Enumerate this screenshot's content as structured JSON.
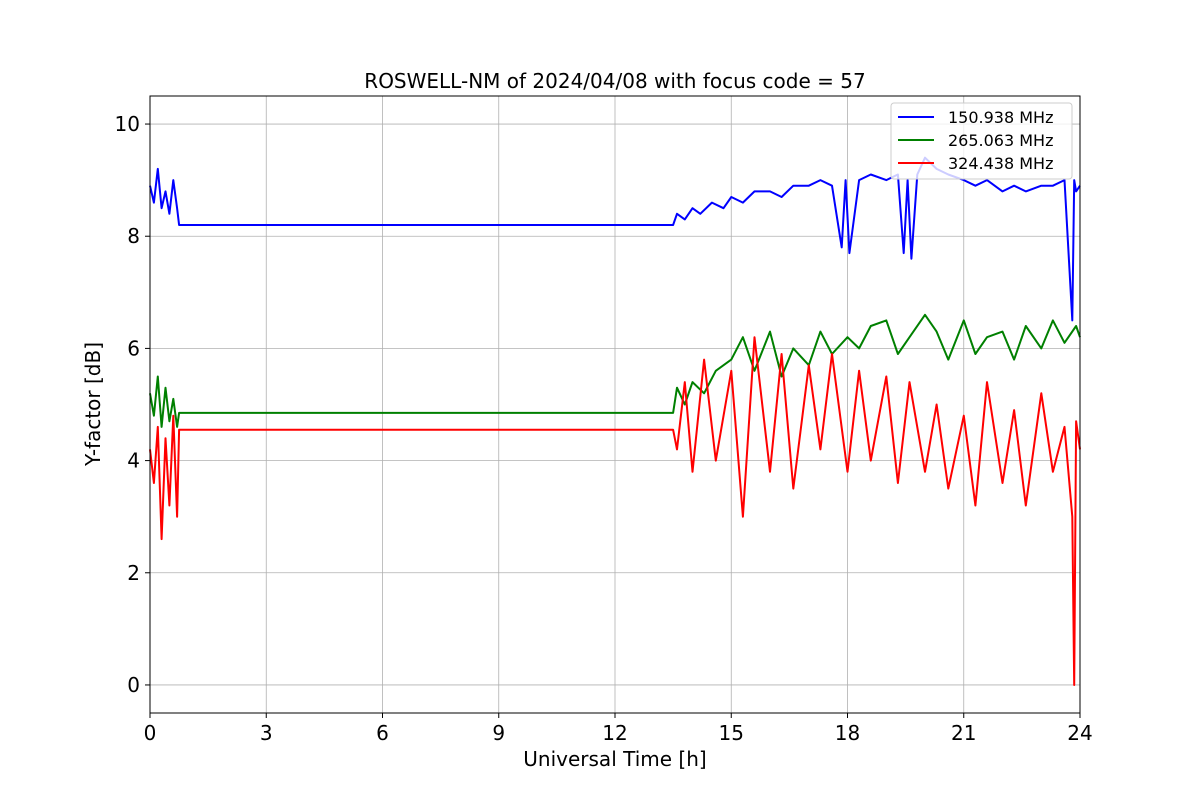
{
  "chart_data": {
    "type": "line",
    "title": "ROSWELL-NM of 2024/04/08 with focus code = 57",
    "xlabel": "Universal Time [h]",
    "ylabel": "Y-factor [dB]",
    "xlim": [
      0,
      24
    ],
    "ylim": [
      -0.5,
      10.5
    ],
    "xticks": [
      0,
      3,
      6,
      9,
      12,
      15,
      18,
      21,
      24
    ],
    "yticks": [
      0,
      2,
      4,
      6,
      8,
      10
    ],
    "grid": true,
    "legend_position": "top-right",
    "series": [
      {
        "name": "150.938 MHz",
        "color": "#0000ff",
        "x": [
          0,
          0.1,
          0.2,
          0.3,
          0.4,
          0.5,
          0.6,
          0.7,
          0.75,
          13.5,
          13.6,
          13.8,
          14.0,
          14.2,
          14.5,
          14.8,
          15.0,
          15.3,
          15.6,
          16.0,
          16.3,
          16.6,
          17.0,
          17.3,
          17.6,
          17.85,
          17.95,
          18.05,
          18.3,
          18.6,
          19.0,
          19.3,
          19.45,
          19.55,
          19.65,
          19.8,
          20.0,
          20.3,
          20.6,
          21.0,
          21.3,
          21.6,
          22.0,
          22.3,
          22.6,
          23.0,
          23.3,
          23.6,
          23.8,
          23.85,
          23.9,
          24.0
        ],
        "y": [
          8.9,
          8.6,
          9.2,
          8.5,
          8.8,
          8.4,
          9.0,
          8.5,
          8.2,
          8.2,
          8.4,
          8.3,
          8.5,
          8.4,
          8.6,
          8.5,
          8.7,
          8.6,
          8.8,
          8.8,
          8.7,
          8.9,
          8.9,
          9.0,
          8.9,
          7.8,
          9.0,
          7.7,
          9.0,
          9.1,
          9.0,
          9.1,
          7.7,
          9.0,
          7.6,
          9.1,
          9.4,
          9.2,
          9.1,
          9.0,
          8.9,
          9.0,
          8.8,
          8.9,
          8.8,
          8.9,
          8.9,
          9.0,
          6.5,
          9.0,
          8.8,
          8.9
        ]
      },
      {
        "name": "265.063 MHz",
        "color": "#008000",
        "x": [
          0,
          0.1,
          0.2,
          0.3,
          0.4,
          0.5,
          0.6,
          0.7,
          0.75,
          13.5,
          13.6,
          13.8,
          14.0,
          14.3,
          14.6,
          15.0,
          15.3,
          15.6,
          16.0,
          16.3,
          16.6,
          17.0,
          17.3,
          17.6,
          18.0,
          18.3,
          18.6,
          19.0,
          19.3,
          19.6,
          20.0,
          20.3,
          20.6,
          21.0,
          21.3,
          21.6,
          22.0,
          22.3,
          22.6,
          23.0,
          23.3,
          23.6,
          23.9,
          24.0
        ],
        "y": [
          5.2,
          4.8,
          5.5,
          4.6,
          5.3,
          4.7,
          5.1,
          4.6,
          4.85,
          4.85,
          5.3,
          5.0,
          5.4,
          5.2,
          5.6,
          5.8,
          6.2,
          5.6,
          6.3,
          5.5,
          6.0,
          5.7,
          6.3,
          5.9,
          6.2,
          6.0,
          6.4,
          6.5,
          5.9,
          6.2,
          6.6,
          6.3,
          5.8,
          6.5,
          5.9,
          6.2,
          6.3,
          5.8,
          6.4,
          6.0,
          6.5,
          6.1,
          6.4,
          6.2
        ]
      },
      {
        "name": "324.438 MHz",
        "color": "#ff0000",
        "x": [
          0,
          0.1,
          0.2,
          0.3,
          0.4,
          0.5,
          0.6,
          0.7,
          0.75,
          13.5,
          13.6,
          13.8,
          14.0,
          14.3,
          14.6,
          15.0,
          15.3,
          15.6,
          16.0,
          16.3,
          16.6,
          17.0,
          17.3,
          17.6,
          18.0,
          18.3,
          18.6,
          19.0,
          19.3,
          19.6,
          20.0,
          20.3,
          20.6,
          21.0,
          21.3,
          21.6,
          22.0,
          22.3,
          22.6,
          23.0,
          23.3,
          23.6,
          23.8,
          23.85,
          23.9,
          24.0
        ],
        "y": [
          4.2,
          3.6,
          4.6,
          2.6,
          4.4,
          3.2,
          4.8,
          3.0,
          4.55,
          4.55,
          4.2,
          5.4,
          3.8,
          5.8,
          4.0,
          5.6,
          3.0,
          6.2,
          3.8,
          5.9,
          3.5,
          5.7,
          4.2,
          5.9,
          3.8,
          5.6,
          4.0,
          5.5,
          3.6,
          5.4,
          3.8,
          5.0,
          3.5,
          4.8,
          3.2,
          5.4,
          3.6,
          4.9,
          3.2,
          5.2,
          3.8,
          4.6,
          3.0,
          0.0,
          4.7,
          4.2
        ]
      }
    ]
  }
}
